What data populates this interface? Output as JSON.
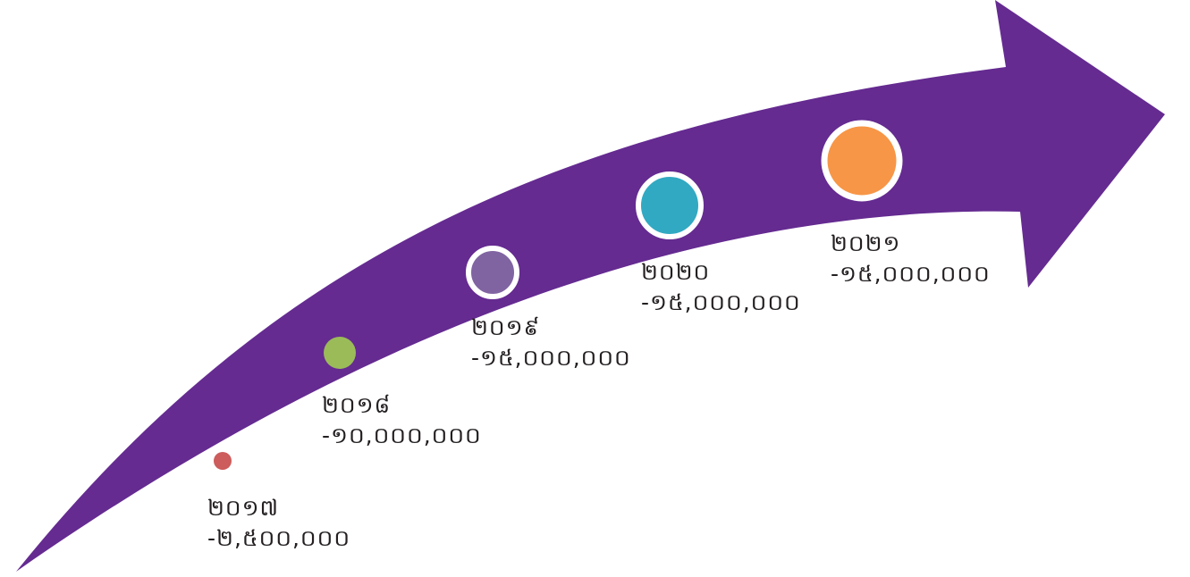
{
  "colors": {
    "arrow": "#652b91",
    "label_text": "#231f20",
    "marker_border": "#ffffff"
  },
  "milestones": [
    {
      "year": "២០១៧",
      "amount": "-២,៥០០,០០០",
      "color": "#cd5c5c"
    },
    {
      "year": "២០១៨",
      "amount": "-១០,០០០,០០០",
      "color": "#9bbb59"
    },
    {
      "year": "២០១៩",
      "amount": "-១៥,០០០,០០០",
      "color": "#8064a2"
    },
    {
      "year": "២០២០",
      "amount": "-១៥,០០០,០០០",
      "color": "#31a9c2"
    },
    {
      "year": "២០២១",
      "amount": "-១៥,០០០,០០០",
      "color": "#f79646"
    }
  ]
}
